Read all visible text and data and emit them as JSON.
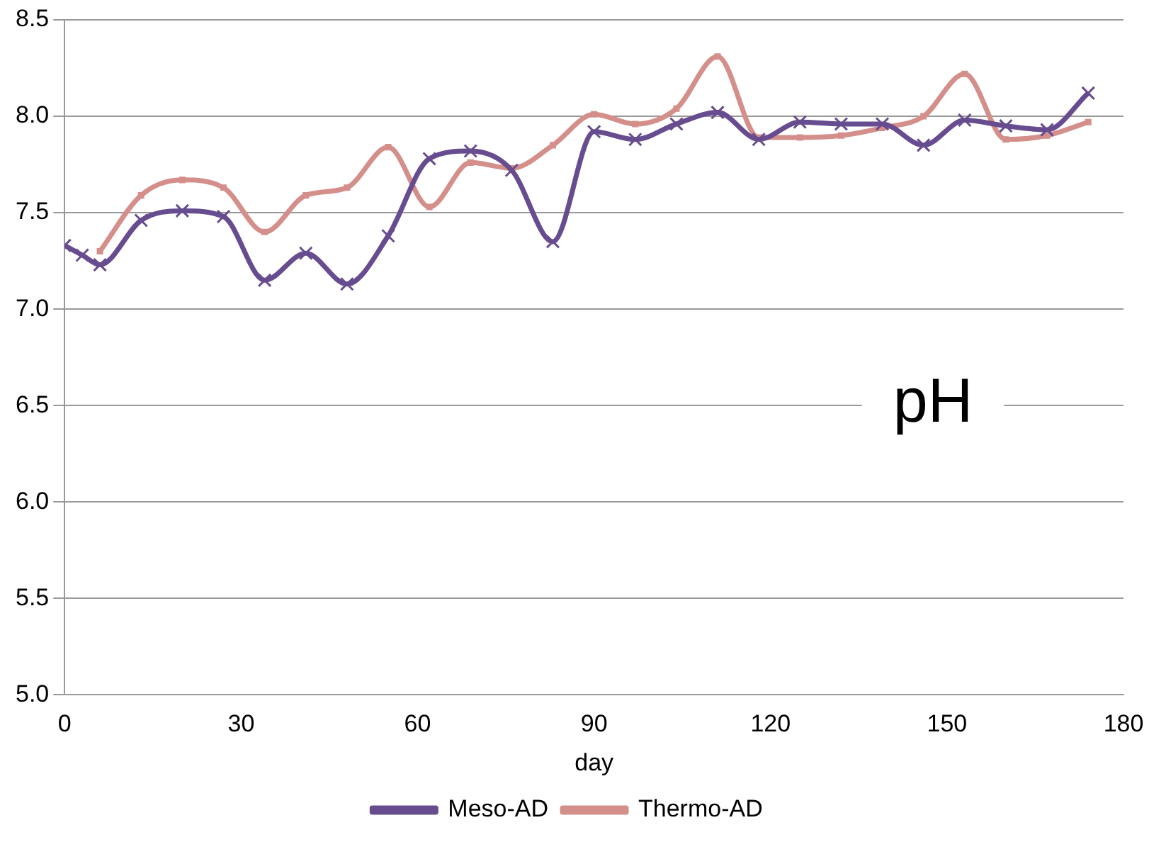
{
  "chart_data": {
    "type": "line",
    "xlabel": "day",
    "annotations": [
      "pH"
    ],
    "xlim": [
      0,
      180
    ],
    "xticks": [
      0,
      30,
      60,
      90,
      120,
      150,
      180
    ],
    "ylim": [
      5.0,
      8.5
    ],
    "yticks": [
      {
        "value": 5.0,
        "label": "5.0"
      },
      {
        "value": 5.5,
        "label": "5.5"
      },
      {
        "value": 6.0,
        "label": "6.0"
      },
      {
        "value": 6.5,
        "label": "6.5"
      },
      {
        "value": 7.0,
        "label": "7.0"
      },
      {
        "value": 7.5,
        "label": "7.5"
      },
      {
        "value": 8.0,
        "label": "8.0"
      },
      {
        "value": 8.5,
        "label": "8.5"
      }
    ],
    "grid": "y",
    "legend": "bottom",
    "line_style": "solid",
    "series": [
      {
        "name": "Meso-AD",
        "color": "#674c8f",
        "marker": "cross",
        "x": [
          0,
          3,
          6,
          13,
          20,
          27,
          34,
          41,
          48,
          55,
          62,
          69,
          76,
          83,
          90,
          97,
          104,
          111,
          118,
          125,
          132,
          139,
          146,
          153,
          160,
          167,
          174
        ],
        "values": [
          7.33,
          7.28,
          7.23,
          7.46,
          7.51,
          7.48,
          7.15,
          7.29,
          7.13,
          7.38,
          7.78,
          7.82,
          7.72,
          7.35,
          7.92,
          7.88,
          7.96,
          8.02,
          7.88,
          7.97,
          7.96,
          7.96,
          7.85,
          7.98,
          7.95,
          7.93,
          8.12
        ]
      },
      {
        "name": "Thermo-AD",
        "color": "#d48f8b",
        "marker": "square",
        "x": [
          6,
          13,
          20,
          27,
          34,
          41,
          48,
          55,
          62,
          69,
          76,
          83,
          90,
          97,
          104,
          111,
          118,
          125,
          132,
          139,
          146,
          153,
          160,
          167,
          174
        ],
        "values": [
          7.3,
          7.59,
          7.67,
          7.63,
          7.4,
          7.59,
          7.63,
          7.84,
          7.53,
          7.76,
          7.73,
          7.85,
          8.01,
          7.96,
          8.04,
          8.31,
          7.89,
          7.89,
          7.9,
          7.94,
          8.0,
          8.22,
          7.88,
          7.9,
          7.97
        ]
      }
    ]
  }
}
